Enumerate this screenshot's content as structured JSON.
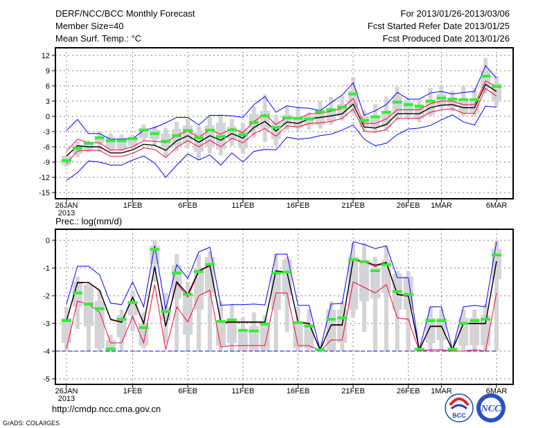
{
  "header": {
    "title": "DERF/NCC/BCC Monthly Forecast",
    "member_size": "Member Size=40",
    "variable": "Mean Surf. Temp.: °C",
    "period": "For 2013/01/26-2013/03/06",
    "refer_date": "Fcst Started Refer Date 2013/01/25",
    "produced_date": "Fcst Produced Date 2013/01/26"
  },
  "footer": {
    "url": "http://cmdp.ncc.cma.gov.cn",
    "grads": "GrADS: COLA/IGES",
    "logo_bcc": "BCC",
    "logo_ncc": "NCC"
  },
  "colors": {
    "max_min": "#0000ff",
    "spread": "#ff0033",
    "mean": "#000000",
    "obs": "#33ee33",
    "box": "#d4d4d8"
  },
  "chart_data": [
    {
      "type": "line",
      "title": "Mean Surf. Temp.: °C",
      "xlabel": "",
      "ylabel": "",
      "ylim": [
        -15,
        13.5
      ],
      "yticks": [
        12,
        9,
        6,
        3,
        0,
        -3,
        -6,
        -9,
        -12,
        -15
      ],
      "xtick_labels": [
        {
          "day": 0,
          "label": "26JAN",
          "sub": "2013"
        },
        {
          "day": 6,
          "label": "1FEB"
        },
        {
          "day": 11,
          "label": "6FEB"
        },
        {
          "day": 16,
          "label": "11FEB"
        },
        {
          "day": 21,
          "label": "16FEB"
        },
        {
          "day": 26,
          "label": "21FEB"
        },
        {
          "day": 31,
          "label": "26FEB"
        },
        {
          "day": 34,
          "label": "1MAR"
        },
        {
          "day": 39,
          "label": "6MAR"
        }
      ],
      "grid": true,
      "ndays": 40,
      "boxes": [
        [
          -9.9,
          -9.5,
          -7.8,
          -7.6
        ],
        [
          -8.0,
          -7.4,
          -5.6,
          -5.0
        ],
        [
          -7.0,
          -6.6,
          -5.0,
          -4.7
        ],
        [
          -7.0,
          -5.3,
          -4.4,
          -3.0
        ],
        [
          -7.0,
          -6.5,
          -4.0,
          -3.4
        ],
        [
          -6.8,
          -6.4,
          -4.2,
          -3.6
        ],
        [
          -6.0,
          -5.7,
          -4.0,
          -3.6
        ],
        [
          -4.7,
          -4.2,
          -2.3,
          -1.6
        ],
        [
          -5.7,
          -4.5,
          -2.6,
          -1.9
        ],
        [
          -8.0,
          -6.3,
          -3.4,
          -2.3
        ],
        [
          -6.8,
          -5.8,
          -2.5,
          -1.1
        ],
        [
          -6.2,
          -5.2,
          -1.8,
          -0.6
        ],
        [
          -8.6,
          -7.0,
          -3.2,
          -1.9
        ],
        [
          -7.3,
          -6.0,
          -1.8,
          0.2
        ],
        [
          -7.7,
          -6.5,
          -1.2,
          0.4
        ],
        [
          -5.8,
          -4.5,
          -2.0,
          -0.5
        ],
        [
          -7.4,
          -6.3,
          -2.5,
          -1.2
        ],
        [
          -4.2,
          -2.4,
          0.5,
          2.0
        ],
        [
          -5.0,
          -2.5,
          1.1,
          4.3
        ],
        [
          -5.8,
          -4.5,
          -1.0,
          0.3
        ],
        [
          -2.7,
          -1.7,
          0.3,
          2.0
        ],
        [
          -2.8,
          -2.2,
          -0.3,
          1.8
        ],
        [
          -2.6,
          -1.8,
          0.0,
          0.8
        ],
        [
          -2.4,
          -1.7,
          1.0,
          3.0
        ],
        [
          -1.6,
          -0.9,
          1.2,
          3.8
        ],
        [
          -0.8,
          0.1,
          2.4,
          4.0
        ],
        [
          0.5,
          1.7,
          5.1,
          7.7
        ],
        [
          -2.9,
          -2.2,
          0.0,
          1.2
        ],
        [
          -3.2,
          -2.2,
          0.2,
          2.4
        ],
        [
          -3.0,
          -2.1,
          1.0,
          3.9
        ],
        [
          -0.7,
          0.2,
          4.0,
          5.8
        ],
        [
          -0.3,
          0.5,
          2.8,
          3.5
        ],
        [
          -1.2,
          -0.5,
          2.2,
          3.2
        ],
        [
          -0.1,
          0.3,
          3.0,
          5.6
        ],
        [
          1.5,
          2.0,
          4.4,
          6.0
        ],
        [
          1.0,
          1.8,
          3.2,
          5.0
        ],
        [
          0.0,
          0.7,
          3.0,
          6.0
        ],
        [
          0.0,
          0.7,
          3.0,
          5.6
        ],
        [
          4.5,
          5.6,
          9.0,
          11.5
        ],
        [
          2.0,
          3.0,
          6.5,
          8.0
        ]
      ],
      "series": [
        {
          "name": "max",
          "color": "#0000ff",
          "values": [
            -2.8,
            -0.6,
            -3.4,
            -3.4,
            -4.5,
            -4.5,
            -4.4,
            -2.8,
            -2.2,
            -1.3,
            -0.2,
            -0.2,
            -1.7,
            0.2,
            0.2,
            0.1,
            -0.2,
            2.3,
            3.9,
            0.8,
            2.1,
            1.7,
            1.6,
            1.1,
            2.7,
            4.2,
            6.6,
            0.2,
            1.1,
            2.3,
            4.7,
            3.4,
            3.4,
            4.6,
            4.9,
            4.4,
            4.7,
            4.9,
            10.0,
            7.5
          ]
        },
        {
          "name": "min",
          "color": "#0000ff",
          "values": [
            -12.6,
            -11.1,
            -8.8,
            -9.0,
            -9.6,
            -9.6,
            -8.6,
            -7.8,
            -9.2,
            -12.0,
            -9.6,
            -7.4,
            -8.6,
            -7.6,
            -9.6,
            -7.2,
            -9.0,
            -6.9,
            -6.5,
            -6.6,
            -4.1,
            -4.5,
            -4.3,
            -3.8,
            -3.5,
            -2.7,
            -1.7,
            -4.5,
            -5.8,
            -5.3,
            -3.6,
            -2.5,
            -2.3,
            -1.8,
            -0.7,
            0.3,
            -1.1,
            -1.7,
            2.0,
            1.8
          ]
        },
        {
          "name": "upper",
          "color": "#ff0033",
          "values": [
            -6.9,
            -4.5,
            -5.2,
            -5.2,
            -6.6,
            -6.6,
            -6.0,
            -4.8,
            -4.9,
            -5.2,
            -3.7,
            -2.9,
            -4.1,
            -2.7,
            -3.5,
            -2.4,
            -3.2,
            -1.0,
            0.4,
            -1.6,
            -0.2,
            -0.5,
            0.5,
            0.6,
            1.0,
            1.6,
            3.5,
            -1.4,
            -1.4,
            -0.5,
            1.3,
            1.3,
            1.3,
            2.5,
            3.0,
            3.0,
            2.3,
            2.3,
            7.0,
            5.8
          ]
        },
        {
          "name": "lower",
          "color": "#ff0033",
          "values": [
            -9.3,
            -6.8,
            -6.7,
            -6.7,
            -7.9,
            -7.9,
            -7.3,
            -6.2,
            -6.5,
            -8.1,
            -6.1,
            -4.8,
            -6.0,
            -4.7,
            -6.0,
            -4.3,
            -5.2,
            -3.4,
            -2.4,
            -3.9,
            -1.9,
            -2.1,
            -1.4,
            -1.3,
            -1.0,
            -0.4,
            1.4,
            -2.9,
            -3.1,
            -2.6,
            -0.4,
            -0.4,
            -0.4,
            0.8,
            1.3,
            1.5,
            0.6,
            0.6,
            5.5,
            4.0
          ]
        },
        {
          "name": "mean",
          "color": "#000000",
          "values": [
            -7.8,
            -5.8,
            -6.0,
            -6.0,
            -7.2,
            -7.2,
            -6.6,
            -5.5,
            -5.7,
            -6.7,
            -4.8,
            -3.8,
            -5.1,
            -3.8,
            -4.7,
            -3.4,
            -4.3,
            -2.2,
            -1.0,
            -2.9,
            -1.1,
            -1.4,
            -0.5,
            -0.2,
            0.1,
            0.5,
            2.4,
            -2.1,
            -2.3,
            -1.6,
            0.5,
            0.5,
            0.5,
            1.7,
            2.2,
            2.3,
            1.7,
            1.7,
            6.3,
            4.9
          ]
        },
        {
          "name": "observed",
          "color": "#33ee33",
          "values": [
            -8.7,
            -6.3,
            -5.3,
            -4.2,
            -4.8,
            -4.8,
            -4.4,
            -2.7,
            -3.4,
            -4.9,
            -3.8,
            -2.8,
            -4.2,
            -2.7,
            -4.0,
            -2.7,
            -3.6,
            -1.2,
            0.1,
            -2.2,
            -0.3,
            -0.4,
            -0.5,
            0.9,
            1.3,
            1.8,
            4.4,
            -0.8,
            -0.1,
            0.8,
            2.8,
            2.3,
            2.0,
            3.0,
            3.6,
            3.4,
            3.3,
            3.3,
            7.9,
            5.9
          ]
        }
      ]
    },
    {
      "type": "line",
      "title": "Prec.: log(mm/d)",
      "xlabel": "",
      "ylabel": "",
      "ylim": [
        -5,
        0.4
      ],
      "yticks": [
        0,
        -1,
        -2,
        -3,
        -4,
        -5
      ],
      "xtick_labels": [
        {
          "day": 0,
          "label": "26JAN",
          "sub": "2013"
        },
        {
          "day": 6,
          "label": "1FEB"
        },
        {
          "day": 11,
          "label": "6FEB"
        },
        {
          "day": 16,
          "label": "11FEB"
        },
        {
          "day": 21,
          "label": "16FEB"
        },
        {
          "day": 26,
          "label": "21FEB"
        },
        {
          "day": 31,
          "label": "26FEB"
        },
        {
          "day": 34,
          "label": "1MAR"
        },
        {
          "day": 39,
          "label": "6MAR"
        }
      ],
      "grid": true,
      "ndays": 40,
      "boxes": [
        [
          -4,
          -3.7,
          -2.8,
          -2.4
        ],
        [
          -3.2,
          -2.4,
          -1.5,
          -1.3
        ],
        [
          -4,
          -3.1,
          -1.6,
          -1.5
        ],
        [
          -4,
          -3.9,
          -2.2,
          -1.8
        ],
        [
          -4,
          -4,
          -3.6,
          -3.4
        ],
        [
          -4,
          -3.5,
          -2.7,
          -2.5
        ],
        [
          -3.3,
          -2.7,
          -2.2,
          -1.8
        ],
        [
          -3.9,
          -3.8,
          -3.0,
          -2.6
        ],
        [
          -1.5,
          -0.85,
          -0.2,
          0
        ],
        [
          -3.7,
          -2.9,
          -2.4,
          -1.9
        ],
        [
          -4,
          -2.1,
          -0.9,
          -0.5
        ],
        [
          -4,
          -3.4,
          -2.0,
          -1.5
        ],
        [
          -4,
          -2.5,
          -1.0,
          -0.5
        ],
        [
          -4,
          -1.9,
          -0.6,
          -0.4
        ],
        [
          -4,
          -3.8,
          -2.9,
          -2.2
        ],
        [
          -4,
          -3.7,
          -2.8,
          -2.3
        ],
        [
          -4,
          -4,
          -3.3,
          -2.8
        ],
        [
          -4,
          -4,
          -3.1,
          -2.6
        ],
        [
          -4,
          -4,
          -3.0,
          -2.7
        ],
        [
          -4,
          -2.5,
          -1.1,
          -0.5
        ],
        [
          -3.3,
          -2.0,
          -0.7,
          -0.6
        ],
        [
          -4,
          -3.9,
          -3.0,
          -2.4
        ],
        [
          -4,
          -3.9,
          -3.0,
          -2.5
        ],
        [
          -4,
          -4,
          -3.95,
          -3.9
        ],
        [
          -4,
          -4,
          -2.5,
          -2.2
        ],
        [
          -4,
          -3.7,
          -2.5,
          -2.2
        ],
        [
          -2.8,
          -2.5,
          -0.6,
          -0.1
        ],
        [
          -3.3,
          -2.2,
          -0.8,
          -0.1
        ],
        [
          -4,
          -2.1,
          -1.0,
          -0.6
        ],
        [
          -4,
          -1.9,
          -0.7,
          -0.2
        ],
        [
          -4,
          -2.5,
          -1.2,
          -1.1
        ],
        [
          -4,
          -2.5,
          -1.3,
          -1.1
        ],
        [
          -4,
          -4,
          -3.95,
          -3.9
        ],
        [
          -4,
          -3.7,
          -2.8,
          -2.4
        ],
        [
          -4,
          -3.6,
          -2.8,
          -2.5
        ],
        [
          -4,
          -4,
          -3.95,
          -3.9
        ],
        [
          -4,
          -3.8,
          -2.8,
          -2.5
        ],
        [
          -4,
          -3.8,
          -2.8,
          -2.5
        ],
        [
          -4,
          -3.8,
          -2.7,
          -2.3
        ],
        [
          -4,
          -1.4,
          -0.3,
          0.0
        ]
      ],
      "series": [
        {
          "name": "max",
          "color": "#0000ff",
          "values": [
            -2.3,
            -0.93,
            -0.93,
            -1.25,
            -2.27,
            -2.32,
            -1.5,
            -2.4,
            -0.2,
            -2.5,
            -0.88,
            -1.38,
            -0.42,
            -0.25,
            -2.35,
            -2.32,
            -2.32,
            -2.3,
            -2.33,
            -0.5,
            -0.5,
            -2.35,
            -2.35,
            -3.95,
            -2.3,
            -2.28,
            -0.05,
            -0.15,
            -0.3,
            -0.2,
            -1.35,
            -1.35,
            -3.95,
            -2.4,
            -2.4,
            -3.95,
            -2.4,
            -2.35,
            -2.4,
            -0.05
          ]
        },
        {
          "name": "min",
          "color": "#0000ff",
          "dashed": true,
          "values": [
            -4,
            -4,
            -4,
            -4,
            -4,
            -4,
            -4,
            -4,
            -4,
            -4,
            -4,
            -4,
            -4,
            -4,
            -4,
            -4,
            -4,
            -4,
            -4,
            -4,
            -4,
            -4,
            -4,
            -4,
            -4,
            -4,
            -4,
            -4,
            -4,
            -4,
            -4,
            -4,
            -4,
            -4,
            -4,
            -4,
            -4,
            -4,
            -4,
            -4
          ]
        },
        {
          "name": "lower",
          "color": "#ff0033",
          "values": [
            -3.9,
            -2.2,
            -2.3,
            -2.6,
            -3.7,
            -3.7,
            -2.75,
            -3.7,
            -1.6,
            -3.95,
            -2.4,
            -2.95,
            -2.0,
            -1.8,
            -3.85,
            -3.8,
            -3.8,
            -3.8,
            -3.8,
            -1.9,
            -1.9,
            -3.8,
            -3.8,
            -4.0,
            -3.6,
            -3.6,
            -1.5,
            -1.7,
            -1.9,
            -1.6,
            -2.8,
            -2.85,
            -4.0,
            -3.95,
            -3.95,
            -4.0,
            -4.0,
            -3.95,
            -4.0,
            -1.9
          ]
        },
        {
          "name": "upper",
          "color": "#ff0033",
          "values": [
            -2.92,
            -1.55,
            -1.52,
            -1.82,
            -2.87,
            -2.97,
            -2.08,
            -3.02,
            -0.98,
            -3.12,
            -1.55,
            -2.05,
            -1.12,
            -0.93,
            -2.97,
            -2.97,
            -2.97,
            -2.97,
            -2.97,
            -1.13,
            -1.18,
            -2.97,
            -3.02,
            -3.97,
            -3.07,
            -3.07,
            -0.72,
            -0.78,
            -0.95,
            -0.82,
            -1.97,
            -2.02,
            -3.97,
            -3.12,
            -3.12,
            -3.97,
            -3.02,
            -3.02,
            -3.02,
            -0.8
          ]
        },
        {
          "name": "mean",
          "color": "#000000",
          "values": [
            -2.9,
            -1.52,
            -1.52,
            -1.8,
            -2.85,
            -2.95,
            -2.05,
            -3.0,
            -0.95,
            -3.1,
            -1.5,
            -1.95,
            -1.1,
            -0.9,
            -2.95,
            -2.95,
            -2.95,
            -2.95,
            -2.95,
            -1.1,
            -1.15,
            -2.95,
            -3.0,
            -3.95,
            -3.05,
            -3.05,
            -0.7,
            -0.75,
            -0.9,
            -0.8,
            -1.95,
            -2.0,
            -3.95,
            -3.1,
            -3.1,
            -3.95,
            -3.0,
            -3.0,
            -3.0,
            -0.75
          ]
        },
        {
          "name": "observed",
          "color": "#33ee33",
          "values": [
            -2.9,
            -1.9,
            -2.3,
            -2.47,
            -3.92,
            -2.85,
            -2.25,
            -3.15,
            -0.33,
            -2.57,
            -1.18,
            -1.95,
            -1.13,
            -0.87,
            -2.93,
            -2.88,
            -3.25,
            -3.27,
            -3.02,
            -1.18,
            -1.15,
            -2.97,
            -3.1,
            -3.95,
            -2.85,
            -2.8,
            -0.7,
            -0.77,
            -1.1,
            -0.88,
            -1.85,
            -1.95,
            -3.93,
            -2.9,
            -2.9,
            -3.93,
            -3.0,
            -2.9,
            -2.85,
            -0.53
          ]
        }
      ]
    }
  ]
}
